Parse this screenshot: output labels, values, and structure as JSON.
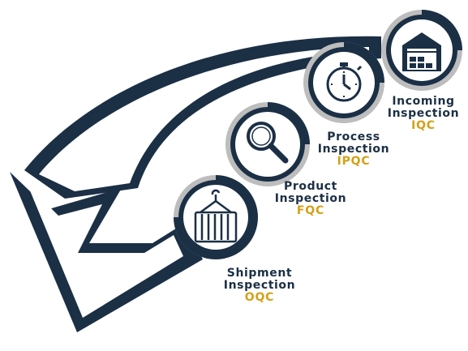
{
  "steps": [
    {
      "id": "iqc",
      "title_line1": "Incoming",
      "title_line2": "Inspection",
      "code": "IQC",
      "icon": "warehouse-icon"
    },
    {
      "id": "ipqc",
      "title_line1": "Process",
      "title_line2": "Inspection",
      "code": "IPQC",
      "icon": "stopwatch-icon"
    },
    {
      "id": "fqc",
      "title_line1": "Product",
      "title_line2": "Inspection",
      "code": "FQC",
      "icon": "magnifier-icon"
    },
    {
      "id": "oqc",
      "title_line1": "Shipment",
      "title_line2": "Inspection",
      "code": "OQC",
      "icon": "container-crane-icon"
    }
  ],
  "colors": {
    "navy": "#1b2f45",
    "gold": "#d4a017",
    "ring_grey": "#bdbdbd",
    "background": "#ffffff"
  }
}
